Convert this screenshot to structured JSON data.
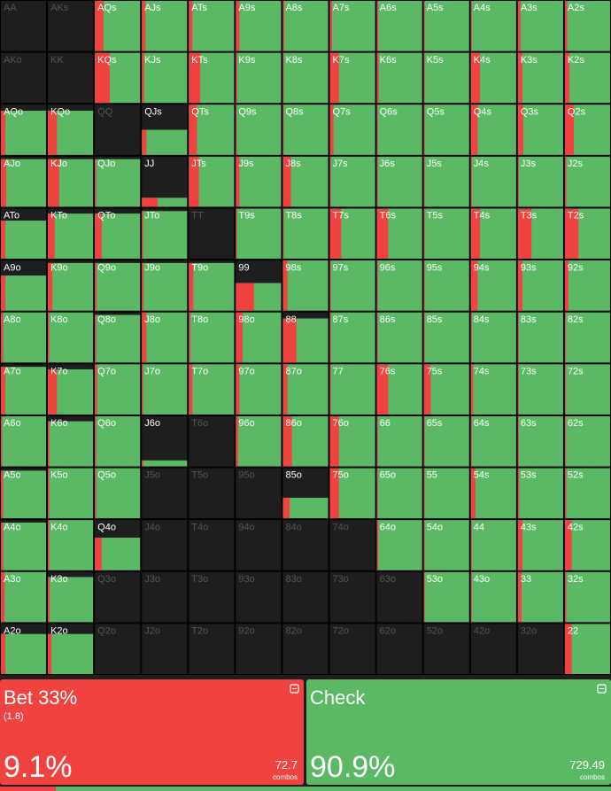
{
  "grid": {
    "hands": [
      [
        "AA",
        "AKs",
        "AQs",
        "AJs",
        "ATs",
        "A9s",
        "A8s",
        "A7s",
        "A6s",
        "A5s",
        "A4s",
        "A3s",
        "A2s"
      ],
      [
        "AKo",
        "KK",
        "KQs",
        "KJs",
        "KTs",
        "K9s",
        "K8s",
        "K7s",
        "K6s",
        "K5s",
        "K4s",
        "K3s",
        "K2s"
      ],
      [
        "AQo",
        "KQo",
        "QQ",
        "QJs",
        "QTs",
        "Q9s",
        "Q8s",
        "Q7s",
        "Q6s",
        "Q5s",
        "Q4s",
        "Q3s",
        "Q2s"
      ],
      [
        "AJo",
        "KJo",
        "QJo",
        "JJ",
        "JTs",
        "J9s",
        "J8s",
        "J7s",
        "J6s",
        "J5s",
        "J4s",
        "J3s",
        "J2s"
      ],
      [
        "ATo",
        "KTo",
        "QTo",
        "JTo",
        "TT",
        "T9s",
        "T8s",
        "T7s",
        "T6s",
        "T5s",
        "T4s",
        "T3s",
        "T2s"
      ],
      [
        "A9o",
        "K9o",
        "Q9o",
        "J9o",
        "T9o",
        "99",
        "98s",
        "97s",
        "96s",
        "95s",
        "94s",
        "93s",
        "92s"
      ],
      [
        "A8o",
        "K8o",
        "Q8o",
        "J8o",
        "T8o",
        "98o",
        "88",
        "87s",
        "86s",
        "85s",
        "84s",
        "83s",
        "82s"
      ],
      [
        "A7o",
        "K7o",
        "Q7o",
        "J7o",
        "T7o",
        "97o",
        "87o",
        "77",
        "76s",
        "75s",
        "74s",
        "73s",
        "72s"
      ],
      [
        "A6o",
        "K6o",
        "Q6o",
        "J6o",
        "T6o",
        "96o",
        "86o",
        "76o",
        "66",
        "65s",
        "64s",
        "63s",
        "62s"
      ],
      [
        "A5o",
        "K5o",
        "Q5o",
        "J5o",
        "T5o",
        "95o",
        "85o",
        "75o",
        "65o",
        "55",
        "54s",
        "53s",
        "52s"
      ],
      [
        "A4o",
        "K4o",
        "Q4o",
        "J4o",
        "T4o",
        "94o",
        "84o",
        "74o",
        "64o",
        "54o",
        "44",
        "43s",
        "42s"
      ],
      [
        "A3o",
        "K3o",
        "Q3o",
        "J3o",
        "T3o",
        "93o",
        "83o",
        "73o",
        "63o",
        "53o",
        "43o",
        "33",
        "32s"
      ],
      [
        "A2o",
        "K2o",
        "Q2o",
        "J2o",
        "T2o",
        "92o",
        "82o",
        "72o",
        "62o",
        "52o",
        "42o",
        "32o",
        "22"
      ]
    ],
    "weights": [
      [
        0,
        0,
        100,
        100,
        100,
        100,
        100,
        100,
        100,
        100,
        100,
        100,
        100
      ],
      [
        0,
        0,
        100,
        100,
        100,
        100,
        100,
        100,
        100,
        100,
        100,
        100,
        100
      ],
      [
        88,
        88,
        0,
        50,
        100,
        100,
        100,
        100,
        100,
        100,
        100,
        100,
        100
      ],
      [
        95,
        95,
        95,
        18,
        100,
        100,
        100,
        100,
        100,
        100,
        100,
        100,
        100
      ],
      [
        76,
        90,
        90,
        95,
        0,
        100,
        100,
        100,
        100,
        100,
        100,
        100,
        100
      ],
      [
        70,
        95,
        95,
        95,
        95,
        55,
        100,
        100,
        100,
        100,
        100,
        100,
        100
      ],
      [
        100,
        100,
        95,
        100,
        100,
        100,
        88,
        100,
        100,
        100,
        100,
        100,
        100
      ],
      [
        95,
        90,
        100,
        100,
        100,
        100,
        100,
        100,
        100,
        100,
        100,
        100,
        100
      ],
      [
        100,
        90,
        100,
        12,
        0,
        100,
        100,
        100,
        100,
        100,
        100,
        100,
        100
      ],
      [
        95,
        100,
        100,
        0,
        0,
        0,
        41,
        100,
        100,
        100,
        100,
        100,
        100
      ],
      [
        95,
        100,
        65,
        0,
        0,
        0,
        0,
        0,
        100,
        100,
        100,
        100,
        100
      ],
      [
        100,
        90,
        0,
        0,
        0,
        0,
        0,
        0,
        0,
        100,
        100,
        100,
        100
      ],
      [
        80,
        80,
        0,
        0,
        0,
        0,
        0,
        0,
        0,
        0,
        0,
        0,
        100
      ]
    ],
    "bet": [
      [
        0,
        0,
        19,
        8,
        8,
        8,
        3,
        5,
        3,
        2,
        2,
        6,
        5
      ],
      [
        0,
        0,
        33,
        5,
        25,
        3,
        2,
        20,
        4,
        2,
        20,
        10,
        10
      ],
      [
        10,
        20,
        0,
        10,
        18,
        2,
        2,
        8,
        2,
        2,
        15,
        12,
        20
      ],
      [
        12,
        25,
        3,
        35,
        22,
        8,
        18,
        2,
        2,
        2,
        2,
        2,
        3
      ],
      [
        10,
        15,
        15,
        3,
        0,
        2,
        2,
        25,
        25,
        2,
        20,
        30,
        30
      ],
      [
        10,
        10,
        4,
        4,
        10,
        40,
        10,
        2,
        2,
        2,
        15,
        10,
        8
      ],
      [
        5,
        3,
        3,
        10,
        3,
        15,
        30,
        2,
        2,
        2,
        2,
        2,
        2
      ],
      [
        10,
        20,
        5,
        3,
        8,
        8,
        10,
        2,
        25,
        15,
        5,
        2,
        2
      ],
      [
        3,
        3,
        3,
        3,
        0,
        5,
        20,
        20,
        2,
        2,
        2,
        2,
        2
      ],
      [
        5,
        3,
        3,
        0,
        0,
        0,
        15,
        20,
        2,
        2,
        10,
        3,
        3
      ],
      [
        5,
        3,
        15,
        0,
        0,
        0,
        0,
        0,
        3,
        2,
        2,
        10,
        15
      ],
      [
        8,
        4,
        0,
        0,
        0,
        0,
        0,
        0,
        0,
        2,
        2,
        8,
        3
      ],
      [
        10,
        8,
        0,
        0,
        0,
        0,
        0,
        0,
        0,
        0,
        0,
        0,
        15
      ]
    ]
  },
  "actions": [
    {
      "name": "Bet 33%",
      "size": "(1.8)",
      "percent": {
        "value": 9.1,
        "label": "9.1%"
      },
      "combos": 72.7,
      "unit": "combos",
      "color": "#f0423f"
    },
    {
      "name": "Check",
      "percent": {
        "value": 90.9,
        "label": "90.9%"
      },
      "combos": 729.49,
      "unit": "combos",
      "color": "#5bb966"
    }
  ]
}
